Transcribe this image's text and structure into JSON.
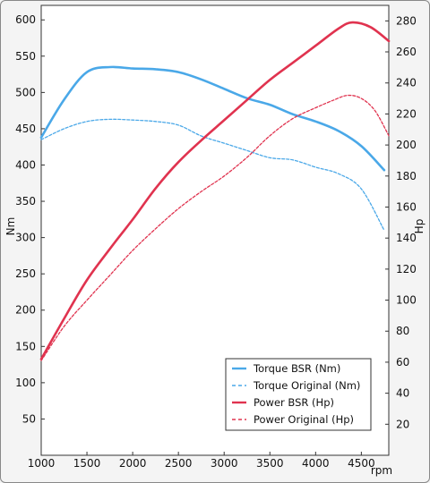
{
  "chart_data": {
    "type": "line",
    "xlabel": "rpm",
    "ylabel_left": "Nm",
    "ylabel_right": "Hp",
    "xlim": [
      1000,
      4800
    ],
    "ylim_left": [
      0,
      620
    ],
    "ylim_right": [
      0,
      290
    ],
    "x_ticks": [
      "1000",
      "1500",
      "2000",
      "2500",
      "3000",
      "3500",
      "4000",
      "4500"
    ],
    "x_tick_values": [
      1000,
      1500,
      2000,
      2500,
      3000,
      3500,
      4000,
      4500
    ],
    "y_left_ticks": [
      "50",
      "100",
      "150",
      "200",
      "250",
      "300",
      "350",
      "400",
      "450",
      "500",
      "550",
      "600"
    ],
    "y_left_tick_values": [
      50,
      100,
      150,
      200,
      250,
      300,
      350,
      400,
      450,
      500,
      550,
      600
    ],
    "y_right_ticks": [
      "20",
      "40",
      "60",
      "80",
      "100",
      "120",
      "140",
      "160",
      "180",
      "200",
      "220",
      "240",
      "260",
      "280"
    ],
    "y_right_tick_values": [
      20,
      40,
      60,
      80,
      100,
      120,
      140,
      160,
      180,
      200,
      220,
      240,
      260,
      280
    ],
    "grid": false,
    "legend_position": "bottom-right",
    "series": [
      {
        "name": "Torque BSR (Nm)",
        "axis": "left",
        "color": "#4aa8e8",
        "dash": "solid",
        "x": [
          1000,
          1250,
          1500,
          1750,
          2000,
          2250,
          2500,
          2750,
          3000,
          3250,
          3500,
          3750,
          4000,
          4250,
          4500,
          4750
        ],
        "y": [
          438,
          490,
          528,
          535,
          533,
          532,
          528,
          518,
          505,
          492,
          483,
          470,
          460,
          447,
          426,
          393
        ]
      },
      {
        "name": "Torque Original (Nm)",
        "axis": "left",
        "color": "#4aa8e8",
        "dash": "dashed",
        "x": [
          1000,
          1250,
          1500,
          1750,
          2000,
          2250,
          2500,
          2750,
          3000,
          3250,
          3500,
          3750,
          4000,
          4250,
          4500,
          4750
        ],
        "y": [
          435,
          450,
          460,
          463,
          462,
          460,
          455,
          440,
          430,
          420,
          410,
          407,
          397,
          388,
          367,
          310
        ]
      },
      {
        "name": "Power BSR (Hp)",
        "axis": "right",
        "color": "#e0334f",
        "dash": "solid",
        "x": [
          1000,
          1250,
          1500,
          1750,
          2000,
          2250,
          2500,
          2750,
          3000,
          3250,
          3500,
          3750,
          4000,
          4250,
          4400,
          4600,
          4800
        ],
        "y": [
          62,
          88,
          113,
          133,
          152,
          172,
          189,
          203,
          216,
          229,
          242,
          253,
          264,
          275,
          279,
          276,
          267
        ]
      },
      {
        "name": "Power Original (Hp)",
        "axis": "right",
        "color": "#e0334f",
        "dash": "dashed",
        "x": [
          1000,
          1250,
          1500,
          1750,
          2000,
          2250,
          2500,
          2750,
          3000,
          3250,
          3500,
          3750,
          4000,
          4200,
          4350,
          4500,
          4650,
          4800
        ],
        "y": [
          61,
          83,
          100,
          116,
          132,
          146,
          159,
          170,
          180,
          192,
          206,
          217,
          224,
          229,
          232,
          230,
          222,
          206
        ]
      }
    ]
  }
}
